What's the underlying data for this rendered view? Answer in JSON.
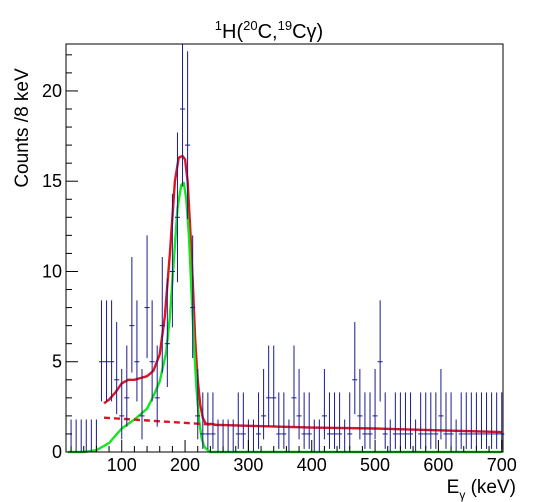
{
  "chart_data": {
    "type": "scatter",
    "title_parts": {
      "a": "1",
      "b": "H(",
      "c": "20",
      "d": "C,",
      "e": "19",
      "f": "Cγ)"
    },
    "ylabel": "Counts /8 keV",
    "xlabel_parts": {
      "main": "E",
      "sub": "γ",
      "unit": " (keV)"
    },
    "xlim": [
      12,
      702
    ],
    "ylim": [
      0,
      22.6
    ],
    "xticks": [
      100,
      200,
      300,
      400,
      500,
      600,
      700
    ],
    "yticks": [
      0,
      5,
      10,
      15,
      20
    ],
    "colors": {
      "data": "#1a1a8c",
      "total_fit": "#e0141e",
      "peak_component": "#14e61e",
      "background_component": "#e0141e",
      "axes": "#000000"
    },
    "data_points": {
      "name": "data",
      "bin_width": 8,
      "x": [
        20,
        28,
        36,
        44,
        52,
        60,
        68,
        76,
        84,
        92,
        100,
        108,
        116,
        124,
        132,
        140,
        148,
        156,
        164,
        172,
        180,
        188,
        196,
        204,
        212,
        220,
        228,
        236,
        244,
        252,
        260,
        268,
        276,
        284,
        292,
        300,
        308,
        316,
        324,
        332,
        340,
        348,
        356,
        364,
        372,
        380,
        388,
        396,
        404,
        412,
        420,
        428,
        436,
        444,
        452,
        460,
        468,
        476,
        484,
        492,
        500,
        508,
        516,
        524,
        532,
        540,
        548,
        556,
        564,
        572,
        580,
        588,
        596,
        604,
        612,
        620,
        628,
        636,
        644,
        652,
        660,
        668,
        676,
        684,
        692,
        700
      ],
      "y": [
        0,
        0,
        0,
        0,
        0,
        0,
        5,
        5,
        5,
        4,
        2,
        3,
        7,
        5,
        2,
        8,
        5,
        3,
        7,
        6,
        10,
        13,
        19,
        17,
        8,
        2,
        1,
        1,
        1,
        0,
        0,
        0,
        0,
        1,
        1,
        0,
        0,
        1,
        2,
        3,
        3,
        1,
        1,
        0,
        3,
        2,
        1,
        1,
        0,
        0,
        2,
        1,
        1,
        1,
        0,
        1,
        4,
        2,
        1,
        1,
        2,
        5,
        1,
        0,
        1,
        1,
        1,
        1,
        0,
        1,
        1,
        1,
        1,
        2,
        1,
        1,
        0,
        1,
        1,
        1,
        1,
        1,
        1,
        1,
        1,
        1
      ],
      "err_low": [
        0,
        0,
        0,
        0,
        0,
        0,
        2.2,
        2.2,
        2.2,
        1.9,
        1.3,
        1.6,
        2.6,
        2.2,
        1.3,
        2.8,
        2.2,
        1.6,
        2.6,
        2.4,
        3.1,
        3.6,
        4.3,
        4.1,
        2.8,
        1.3,
        0.83,
        0.83,
        0.83,
        0,
        0,
        0,
        0,
        0.83,
        0.83,
        0,
        0,
        0.83,
        1.3,
        1.6,
        1.6,
        0.83,
        0.83,
        0,
        1.6,
        1.3,
        0.83,
        0.83,
        0,
        0,
        1.3,
        0.83,
        0.83,
        0.83,
        0,
        0.83,
        1.9,
        1.3,
        0.83,
        0.83,
        1.3,
        2.2,
        0.83,
        0,
        0.83,
        0.83,
        0.83,
        0.83,
        0,
        0.83,
        0.83,
        0.83,
        0.83,
        1.3,
        0.83,
        0.83,
        0,
        0.83,
        0.83,
        0.83,
        0.83,
        0.83,
        0.83,
        0.83,
        0.83,
        0.83
      ],
      "err_high": [
        1.8,
        1.8,
        1.8,
        1.8,
        1.8,
        1.8,
        3.4,
        3.4,
        3.4,
        3.2,
        2.6,
        2.9,
        3.8,
        3.4,
        2.6,
        4.0,
        3.4,
        2.9,
        3.8,
        3.6,
        4.3,
        4.7,
        5.4,
        5.2,
        4.0,
        2.6,
        2.3,
        2.3,
        2.3,
        1.8,
        1.8,
        1.8,
        1.8,
        2.3,
        2.3,
        1.8,
        1.8,
        2.3,
        2.6,
        2.9,
        2.9,
        2.3,
        2.3,
        1.8,
        2.9,
        2.6,
        2.3,
        2.3,
        1.8,
        1.8,
        2.6,
        2.3,
        2.3,
        2.3,
        1.8,
        2.3,
        3.2,
        2.6,
        2.3,
        2.3,
        2.6,
        3.4,
        2.3,
        1.8,
        2.3,
        2.3,
        2.3,
        2.3,
        1.8,
        2.3,
        2.3,
        2.3,
        2.3,
        2.6,
        2.3,
        2.3,
        1.8,
        2.3,
        2.3,
        2.3,
        2.3,
        2.3,
        2.3,
        2.3,
        2.3,
        2.3
      ]
    },
    "series": [
      {
        "name": "total fit",
        "style": "solid",
        "x": [
          72,
          80,
          90,
          100,
          110,
          120,
          130,
          140,
          150,
          160,
          168,
          176,
          184,
          190,
          196,
          200,
          204,
          208,
          212,
          216,
          220,
          224,
          228,
          232,
          236,
          240,
          244,
          248,
          255,
          300,
          400,
          500,
          600,
          700
        ],
        "y": [
          2.7,
          2.9,
          3.3,
          3.8,
          4.0,
          4.0,
          4.1,
          4.2,
          4.5,
          5.4,
          7.5,
          11.0,
          15.0,
          16.3,
          16.4,
          16.2,
          15.0,
          12.5,
          9.5,
          6.2,
          4.0,
          2.6,
          1.9,
          1.6,
          1.55,
          1.55,
          1.55,
          1.5,
          1.5,
          1.45,
          1.35,
          1.3,
          1.2,
          1.1
        ]
      },
      {
        "name": "peak component",
        "style": "solid",
        "x": [
          15,
          40,
          60,
          80,
          100,
          120,
          140,
          150,
          160,
          170,
          176,
          182,
          188,
          194,
          198,
          202,
          206,
          210,
          214,
          218,
          222,
          226,
          230,
          236,
          240,
          245,
          300,
          400,
          500,
          600,
          700
        ],
        "y": [
          0,
          0,
          0.1,
          0.5,
          1.3,
          1.8,
          2.4,
          3.1,
          3.9,
          5.5,
          7.5,
          10.5,
          13.5,
          14.8,
          14.9,
          14.0,
          12.0,
          9.0,
          6.0,
          3.5,
          1.8,
          0.8,
          0.3,
          0.1,
          0,
          0,
          0,
          0,
          0,
          0,
          0
        ]
      },
      {
        "name": "background component",
        "style": "dashed",
        "x": [
          72,
          250
        ],
        "y": [
          1.9,
          1.5
        ]
      }
    ]
  }
}
